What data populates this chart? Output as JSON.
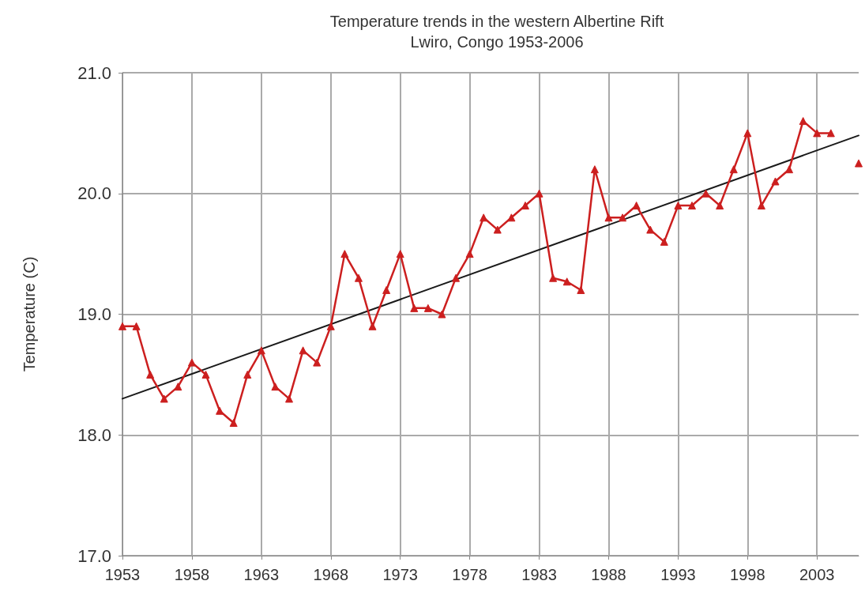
{
  "chart_data": {
    "type": "line",
    "title": "Temperature trends in the western Albertine Rift",
    "subtitle": "Lwiro, Congo 1953-2006",
    "ylabel": "Temperature (C)",
    "x": [
      1953,
      1954,
      1955,
      1956,
      1957,
      1958,
      1959,
      1960,
      1961,
      1962,
      1963,
      1964,
      1965,
      1966,
      1967,
      1968,
      1969,
      1970,
      1971,
      1972,
      1973,
      1974,
      1975,
      1976,
      1977,
      1978,
      1979,
      1980,
      1981,
      1982,
      1983,
      1984,
      1985,
      1986,
      1987,
      1988,
      1989,
      1990,
      1991,
      1992,
      1993,
      1994,
      1995,
      1996,
      1997,
      1998,
      1999,
      2000,
      2001,
      2002,
      2003,
      2004,
      2005,
      2006
    ],
    "series": [
      {
        "color": "#cc1f1f",
        "marker": "triangle",
        "values": [
          18.9,
          18.9,
          18.5,
          18.3,
          18.4,
          18.6,
          18.5,
          18.2,
          18.1,
          18.5,
          18.7,
          18.4,
          18.3,
          18.7,
          18.6,
          18.9,
          19.5,
          19.3,
          18.9,
          19.2,
          19.5,
          19.05,
          19.05,
          19.0,
          19.3,
          19.5,
          19.8,
          19.7,
          19.8,
          19.9,
          20.0,
          19.3,
          19.27,
          19.2,
          20.2,
          19.8,
          19.8,
          19.9,
          19.7,
          19.6,
          19.9,
          19.9,
          20.0,
          19.9,
          20.2,
          20.5,
          19.9,
          20.1,
          20.2,
          20.6,
          20.5,
          20.5,
          null,
          20.25
        ]
      },
      {
        "color": "#1a1a1a",
        "marker": "none",
        "x": [
          1953,
          2006
        ],
        "values": [
          18.3,
          20.48
        ]
      }
    ],
    "xlim": [
      1953,
      2006
    ],
    "xticks": [
      1953,
      1958,
      1963,
      1968,
      1973,
      1978,
      1983,
      1988,
      1993,
      1998,
      2003
    ],
    "ylim": [
      17,
      21
    ],
    "yticks": [
      {
        "value": 17,
        "label": "17.0"
      },
      {
        "value": 18,
        "label": "18.0"
      },
      {
        "value": 19,
        "label": "19.0"
      },
      {
        "value": 20,
        "label": "20.0"
      },
      {
        "value": 21,
        "label": "21.0"
      }
    ],
    "grid": true
  }
}
